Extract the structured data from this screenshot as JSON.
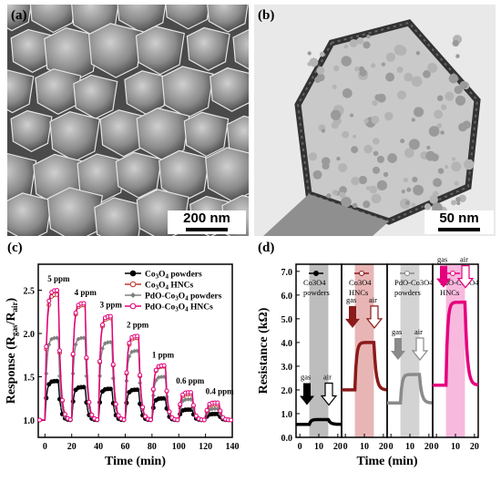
{
  "figure": {
    "panel_a": {
      "label": "(a)",
      "scale_bar": "200 nm"
    },
    "panel_b": {
      "label": "(b)",
      "scale_bar": "50 nm"
    },
    "panel_c": {
      "label": "(c)"
    },
    "panel_d": {
      "label": "(d)"
    }
  },
  "chart_data": [
    {
      "type": "line",
      "panel": "(c)",
      "xlabel": "Time (min)",
      "ylabel": "Response (R_gas/R_air)",
      "xlim": [
        -5,
        140
      ],
      "ylim": [
        0.8,
        2.8
      ],
      "xticks": [
        "0",
        "20",
        "40",
        "60",
        "80",
        "100",
        "120",
        "140"
      ],
      "yticks": [
        "1.0",
        "1.5",
        "2.0",
        "2.5"
      ],
      "legend_position": "top-right",
      "annotations": [
        "5 ppm",
        "4 ppm",
        "3 ppm",
        "2 ppm",
        "1 ppm",
        "0.6 ppm",
        "0.4 ppm"
      ],
      "pulses": [
        {
          "start": 0,
          "end": 10
        },
        {
          "start": 20,
          "end": 30
        },
        {
          "start": 40,
          "end": 50
        },
        {
          "start": 60,
          "end": 70
        },
        {
          "start": 80,
          "end": 90
        },
        {
          "start": 100,
          "end": 110
        },
        {
          "start": 120,
          "end": 130
        }
      ],
      "series": [
        {
          "name": "Co3O4 powders",
          "color": "#000000",
          "marker": "filled-circle",
          "peaks": [
            1.45,
            1.38,
            1.36,
            1.35,
            1.25,
            1.12,
            1.07
          ]
        },
        {
          "name": "Co3O4 HNCs",
          "color": "#c0392b",
          "marker": "open-circle",
          "peaks": [
            2.45,
            2.33,
            2.18,
            1.95,
            1.62,
            1.3,
            1.18
          ]
        },
        {
          "name": "PdO-Co3O4 powders",
          "color": "#808080",
          "marker": "diamond",
          "peaks": [
            1.95,
            1.95,
            1.9,
            1.8,
            1.5,
            1.24,
            1.13
          ]
        },
        {
          "name": "PdO-Co3O4 HNCs",
          "color": "#e6007e",
          "marker": "open-circle",
          "peaks": [
            2.5,
            2.35,
            2.2,
            1.97,
            1.63,
            1.32,
            1.2
          ]
        }
      ]
    },
    {
      "type": "line",
      "panel": "(d)",
      "xlabel": "Time (min)",
      "ylabel": "Resistance (kΩ)",
      "ylim": [
        0,
        7.3
      ],
      "yticks": [
        "0.0",
        "1.0",
        "2.0",
        "3.0",
        "4.0",
        "5.0",
        "6.0",
        "7.0"
      ],
      "xticks": [
        "0",
        "10",
        "20"
      ],
      "gas_window": [
        5,
        15
      ],
      "subplots": [
        {
          "name": "Co3O4 powders",
          "color": "#000000",
          "shade": "#bdbdbd",
          "base": 0.55,
          "gas_level": 0.75,
          "arrow_gas": "gas",
          "arrow_air": "air"
        },
        {
          "name": "Co3O4 HNCs",
          "color": "#8b1a1a",
          "shade": "#e8b5b5",
          "base": 2.0,
          "gas_level": 4.0,
          "arrow_gas": "gas",
          "arrow_air": "air"
        },
        {
          "name": "PdO-Co3O4 powders",
          "color": "#8a8a8a",
          "shade": "#d3d3d3",
          "base": 1.45,
          "gas_level": 2.65,
          "arrow_gas": "gas",
          "arrow_air": "air"
        },
        {
          "name": "PdO-Co3O4 HNCs",
          "color": "#e6007e",
          "shade": "#f7b9dd",
          "base": 2.2,
          "gas_level": 5.7,
          "arrow_gas": "gas",
          "arrow_air": "air"
        }
      ]
    }
  ]
}
